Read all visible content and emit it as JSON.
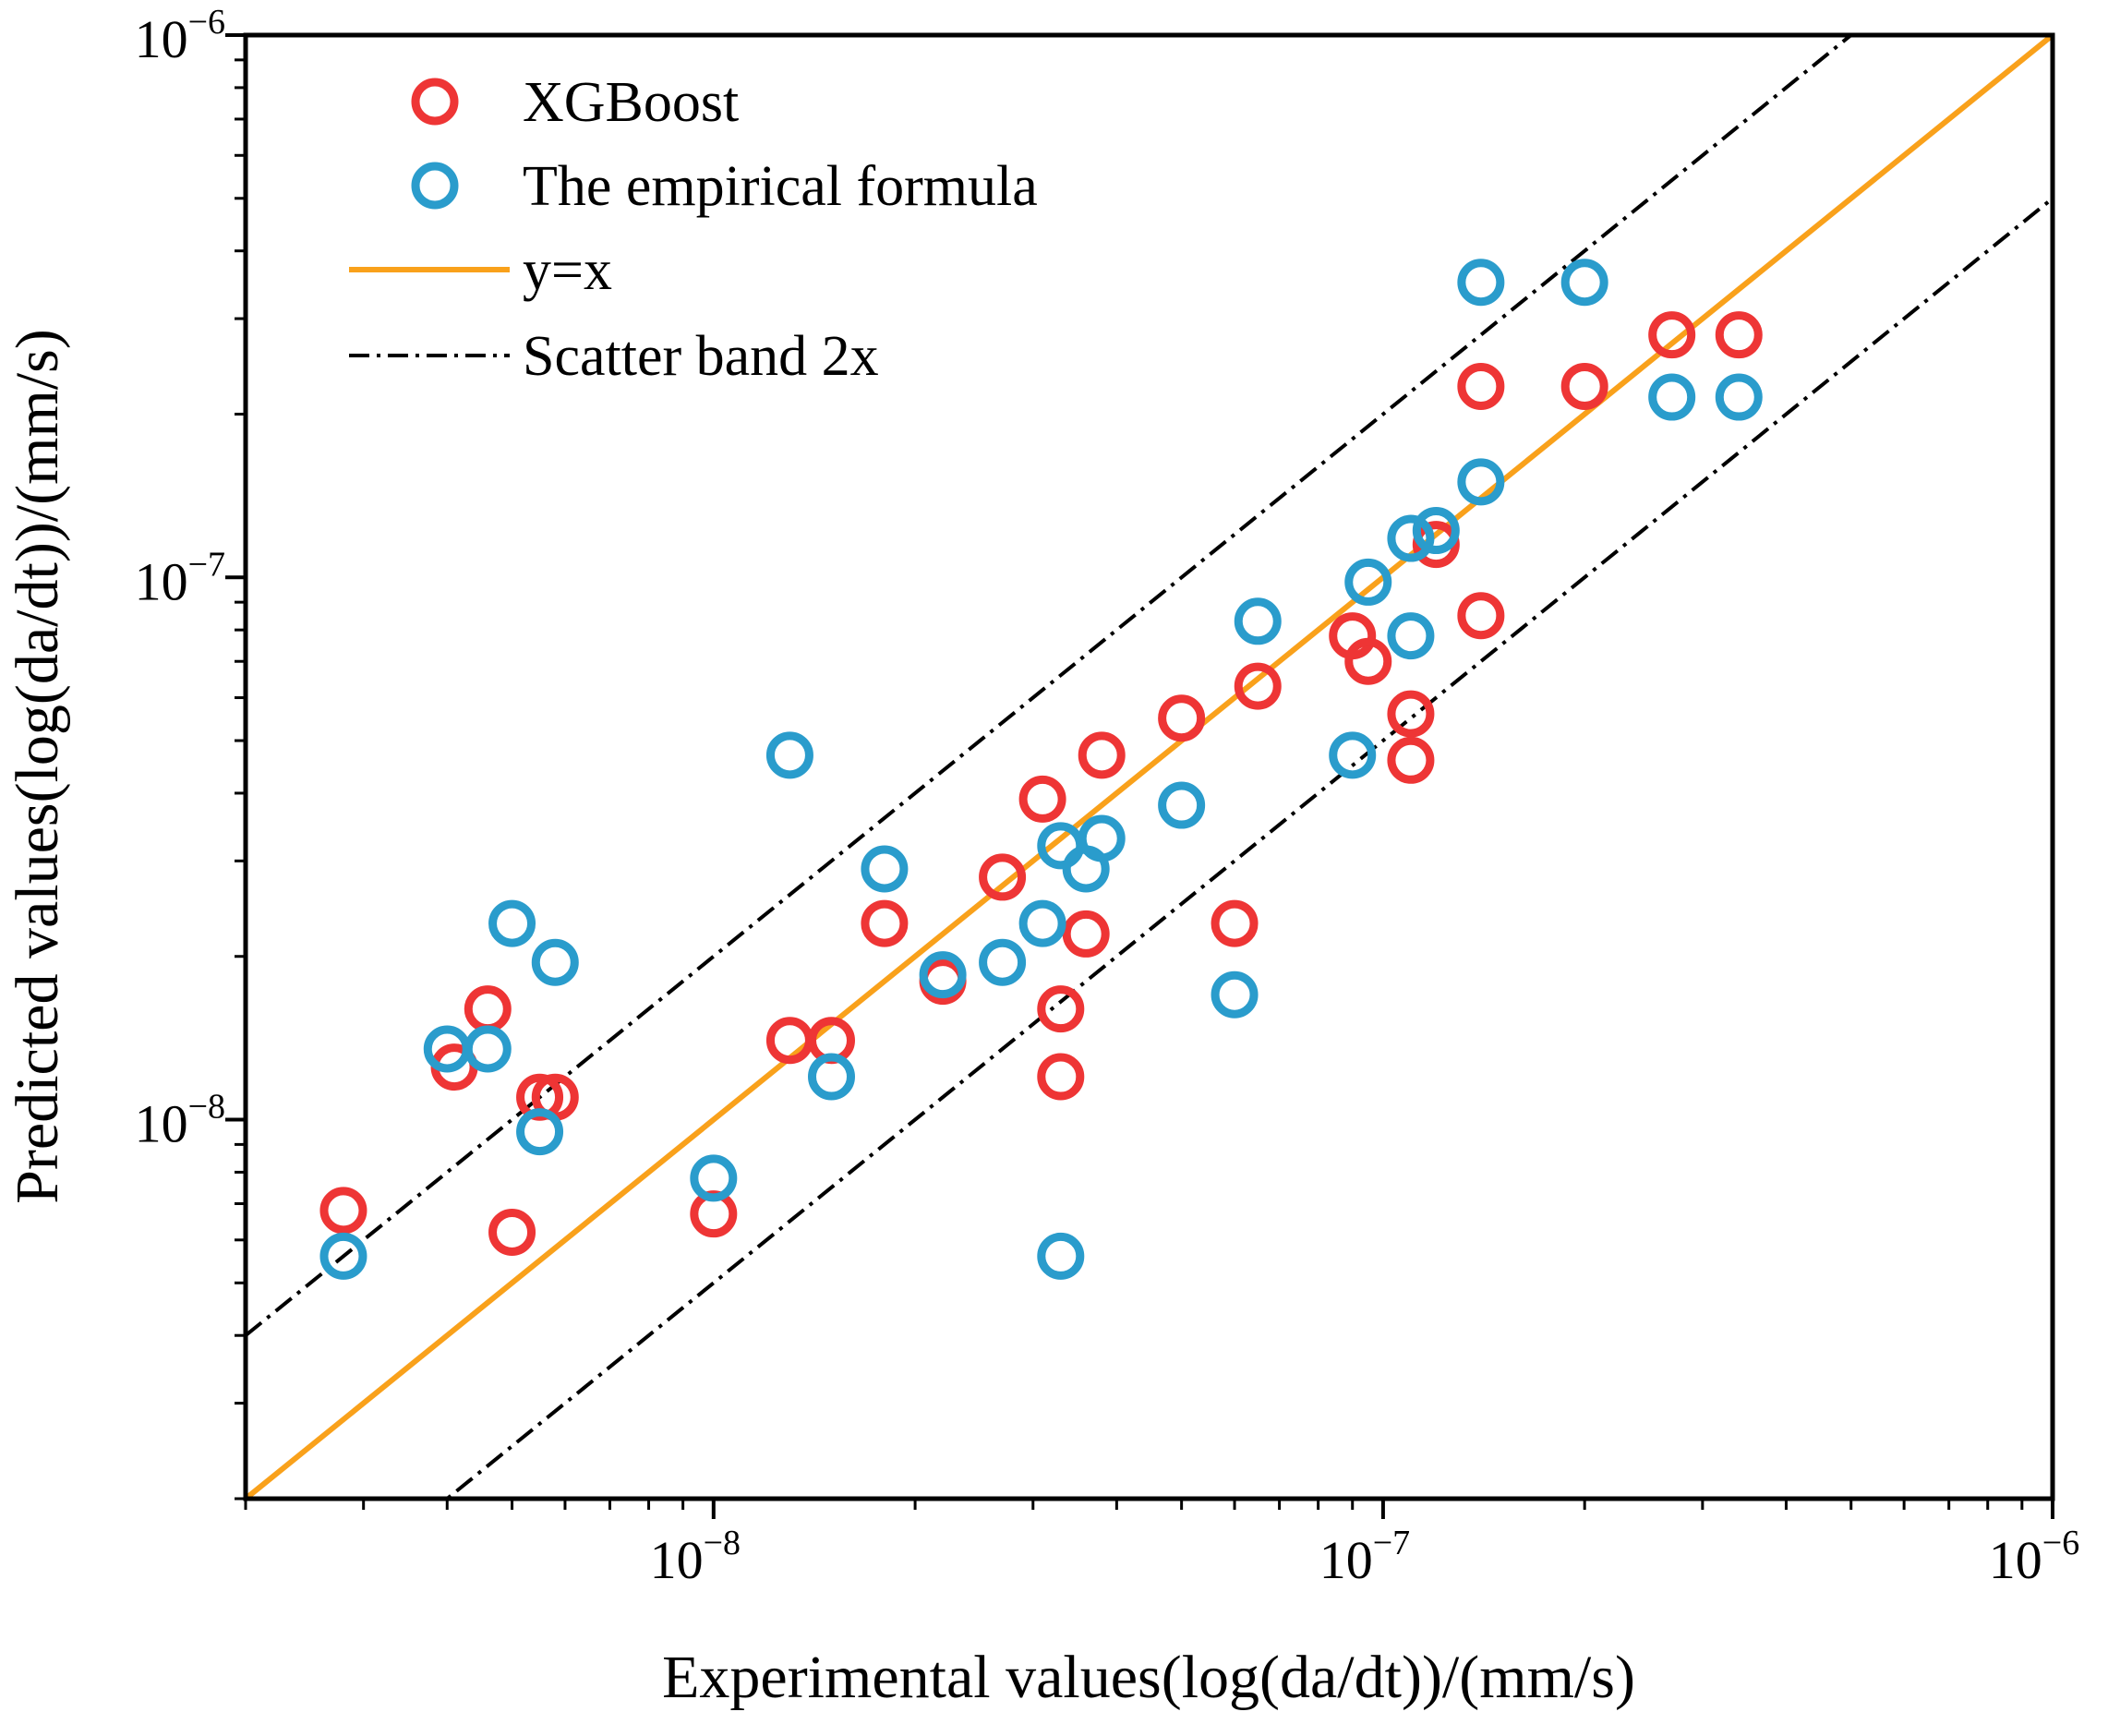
{
  "chart_data": {
    "type": "scatter",
    "xscale": "log",
    "yscale": "log",
    "xlim": [
      2e-09,
      1e-06
    ],
    "ylim": [
      2e-09,
      1e-06
    ],
    "xlabel": "Experimental values(log(da/dt))/(mm/s)",
    "ylabel": "Predicted values(log(da/dt))/(mm/s)",
    "xticks": [
      {
        "value": 1e-08,
        "base": "10",
        "exp": "−8"
      },
      {
        "value": 1e-07,
        "base": "10",
        "exp": "−7"
      },
      {
        "value": 1e-06,
        "base": "10",
        "exp": "−6"
      }
    ],
    "yticks": [
      {
        "value": 1e-08,
        "base": "10",
        "exp": "−8"
      },
      {
        "value": 1e-07,
        "base": "10",
        "exp": "−7"
      },
      {
        "value": 1e-06,
        "base": "10",
        "exp": "−6"
      }
    ],
    "legend_position": "top-left",
    "series": [
      {
        "name": "XGBoost",
        "kind": "scatter",
        "color": "#ee3535",
        "x": [
          2.8e-09,
          4.1e-09,
          4.6e-09,
          5e-09,
          5.5e-09,
          5.8e-09,
          1e-08,
          1.3e-08,
          1.5e-08,
          1.8e-08,
          2.2e-08,
          2.7e-08,
          3.1e-08,
          3.3e-08,
          3.3e-08,
          3.6e-08,
          3.8e-08,
          5e-08,
          6e-08,
          6.5e-08,
          9e-08,
          9.5e-08,
          1.1e-07,
          1.1e-07,
          1.2e-07,
          1.4e-07,
          1.4e-07,
          2e-07,
          2.7e-07,
          3.4e-07
        ],
        "y": [
          6.8e-09,
          1.25e-08,
          1.6e-08,
          6.2e-09,
          1.1e-08,
          1.1e-08,
          6.7e-09,
          1.4e-08,
          1.4e-08,
          2.3e-08,
          1.8e-08,
          2.8e-08,
          3.9e-08,
          1.6e-08,
          1.2e-08,
          2.2e-08,
          4.7e-08,
          5.5e-08,
          2.3e-08,
          6.3e-08,
          7.8e-08,
          7e-08,
          5.6e-08,
          4.6e-08,
          1.15e-07,
          8.5e-08,
          2.25e-07,
          2.25e-07,
          2.8e-07,
          2.8e-07
        ]
      },
      {
        "name": "The empirical formula",
        "kind": "scatter",
        "color": "#2a9ccc",
        "x": [
          2.8e-09,
          4e-09,
          4.6e-09,
          5e-09,
          5.5e-09,
          5.8e-09,
          1e-08,
          1.3e-08,
          1.5e-08,
          1.8e-08,
          2.2e-08,
          2.7e-08,
          3.1e-08,
          3.3e-08,
          3.3e-08,
          3.6e-08,
          3.8e-08,
          5e-08,
          6e-08,
          6.5e-08,
          9e-08,
          9.5e-08,
          1.1e-07,
          1.1e-07,
          1.2e-07,
          1.4e-07,
          1.4e-07,
          2e-07,
          2.7e-07,
          3.4e-07
        ],
        "y": [
          5.6e-09,
          1.35e-08,
          1.35e-08,
          2.3e-08,
          9.5e-09,
          1.95e-08,
          7.8e-09,
          4.7e-08,
          1.2e-08,
          2.9e-08,
          1.85e-08,
          1.95e-08,
          2.3e-08,
          5.6e-09,
          3.2e-08,
          2.9e-08,
          3.3e-08,
          3.8e-08,
          1.7e-08,
          8.3e-08,
          4.7e-08,
          9.8e-08,
          7.8e-08,
          1.18e-07,
          1.22e-07,
          1.5e-07,
          3.5e-07,
          3.5e-07,
          2.15e-07,
          2.15e-07
        ]
      },
      {
        "name": "y=x",
        "kind": "line",
        "color": "#f9a11b",
        "x": [
          2e-09,
          1e-06
        ],
        "y": [
          2e-09,
          1e-06
        ]
      },
      {
        "name": "Scatter band 2x",
        "kind": "dashdot",
        "color": "#000000",
        "bands": [
          {
            "x": [
              2e-09,
              1e-06
            ],
            "y": [
              4e-09,
              2e-06
            ]
          },
          {
            "x": [
              2e-09,
              1e-06
            ],
            "y": [
              1e-09,
              5e-07
            ]
          }
        ]
      }
    ]
  }
}
